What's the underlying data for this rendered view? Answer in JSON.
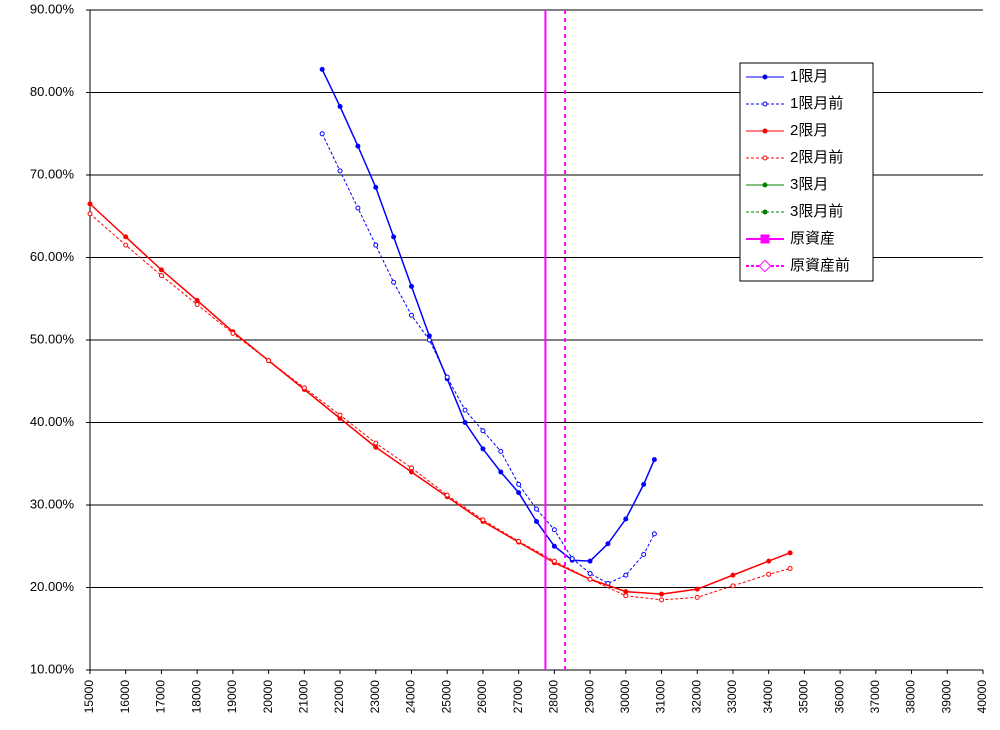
{
  "chart_data": {
    "type": "line",
    "xlim": [
      15000,
      40000
    ],
    "xticks": [
      15000,
      16000,
      17000,
      18000,
      19000,
      20000,
      21000,
      22000,
      23000,
      24000,
      25000,
      26000,
      27000,
      28000,
      29000,
      30000,
      31000,
      32000,
      33000,
      34000,
      35000,
      36000,
      37000,
      38000,
      39000,
      40000
    ],
    "ylim": [
      10,
      90
    ],
    "yticks": [
      {
        "value": 10,
        "label": "10.00%"
      },
      {
        "value": 20,
        "label": "20.00%"
      },
      {
        "value": 30,
        "label": "30.00%"
      },
      {
        "value": 40,
        "label": "40.00%"
      },
      {
        "value": 50,
        "label": "50.00%"
      },
      {
        "value": 60,
        "label": "60.00%"
      },
      {
        "value": 70,
        "label": "70.00%"
      },
      {
        "value": 80,
        "label": "80.00%"
      },
      {
        "value": 90,
        "label": "90.00%"
      }
    ],
    "grid": true,
    "series": [
      {
        "name": "1限月",
        "color": "#0000ff",
        "dash": false,
        "marker": "filled",
        "x": [
          21500,
          22000,
          22500,
          23000,
          23500,
          24000,
          24500,
          25000,
          25500,
          26000,
          26500,
          27000,
          27500,
          28000,
          28500,
          29000,
          29500,
          30000,
          30500,
          30800
        ],
        "values": [
          82.8,
          78.3,
          73.5,
          68.5,
          62.5,
          56.5,
          50.5,
          45.3,
          40.0,
          36.8,
          34.0,
          31.5,
          28.0,
          25.0,
          23.3,
          23.2,
          25.3,
          28.3,
          32.5,
          35.5
        ]
      },
      {
        "name": "1限月前",
        "color": "#0000ff",
        "dash": true,
        "marker": "open",
        "x": [
          21500,
          22000,
          22500,
          23000,
          23500,
          24000,
          24500,
          25000,
          25500,
          26000,
          26500,
          27000,
          27500,
          28000,
          28500,
          29000,
          29500,
          30000,
          30500,
          30800
        ],
        "values": [
          75.0,
          70.5,
          66.0,
          61.5,
          57.0,
          53.0,
          50.0,
          45.5,
          41.5,
          39.0,
          36.5,
          32.5,
          29.5,
          27.0,
          23.5,
          21.7,
          20.5,
          21.5,
          24.0,
          26.5
        ]
      },
      {
        "name": "2限月",
        "color": "#ff0000",
        "dash": false,
        "marker": "filled",
        "x": [
          15000,
          16000,
          17000,
          18000,
          19000,
          20000,
          21000,
          22000,
          23000,
          24000,
          25000,
          26000,
          27000,
          28000,
          29000,
          30000,
          31000,
          32000,
          33000,
          34000,
          34600
        ],
        "values": [
          66.5,
          62.5,
          58.5,
          54.8,
          51.0,
          47.5,
          44.0,
          40.5,
          37.0,
          34.0,
          31.0,
          28.0,
          25.5,
          23.0,
          21.0,
          19.5,
          19.2,
          19.8,
          21.5,
          23.2,
          24.2
        ]
      },
      {
        "name": "2限月前",
        "color": "#ff0000",
        "dash": true,
        "marker": "open",
        "x": [
          15000,
          16000,
          17000,
          18000,
          19000,
          20000,
          21000,
          22000,
          23000,
          24000,
          25000,
          26000,
          27000,
          28000,
          29000,
          30000,
          31000,
          32000,
          33000,
          34000,
          34600
        ],
        "values": [
          65.3,
          61.5,
          57.8,
          54.3,
          50.8,
          47.5,
          44.2,
          40.9,
          37.5,
          34.5,
          31.2,
          28.2,
          25.6,
          23.2,
          21.0,
          19.0,
          18.5,
          18.8,
          20.2,
          21.6,
          22.3
        ]
      },
      {
        "name": "3限月",
        "color": "#008000",
        "dash": false,
        "marker": "filled",
        "x": [],
        "values": []
      },
      {
        "name": "3限月前",
        "color": "#008000",
        "dash": true,
        "marker": "filled",
        "x": [],
        "values": []
      },
      {
        "name": "原資産",
        "color": "#ff00ff",
        "dash": false,
        "marker": "none",
        "x": [
          27750,
          27750
        ],
        "values": [
          10,
          90
        ]
      },
      {
        "name": "原資産前",
        "color": "#ff00ff",
        "dash": true,
        "marker": "none",
        "x": [
          28300,
          28300
        ],
        "values": [
          10,
          90
        ]
      }
    ]
  }
}
